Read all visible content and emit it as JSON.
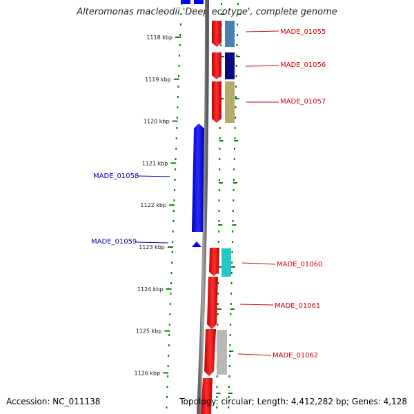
{
  "title": "Alteromonas macleodii 'Deep ecotype', complete genome",
  "footer": {
    "accession": "Accession: NC_011138",
    "summary": "Topology: circular; Length: 4,412,282 bp; Genes: 4,128"
  },
  "ticks": [
    "1118 kbp",
    "1119 kbp",
    "1120 kbp",
    "1121 kbp",
    "1122 kbp",
    "1123 kbp",
    "1124 kbp",
    "1125 kbp",
    "1126 kbp"
  ],
  "genes": [
    {
      "id": "MADE_01055",
      "strand": "forward",
      "color": "#ff0000",
      "cog_color": "#4a7fb5"
    },
    {
      "id": "MADE_01056",
      "strand": "forward",
      "color": "#ff0000",
      "cog_color": "#0a0a80"
    },
    {
      "id": "MADE_01057",
      "strand": "forward",
      "color": "#ff0000",
      "cog_color": "#b5aa6a"
    },
    {
      "id": "MADE_01058",
      "strand": "reverse",
      "color": "#0000ff"
    },
    {
      "id": "MADE_01059",
      "strand": "reverse",
      "color": "#0000ff"
    },
    {
      "id": "MADE_01060",
      "strand": "forward",
      "color": "#ff0000",
      "cog_color": "#20c8c8"
    },
    {
      "id": "MADE_01061",
      "strand": "forward",
      "color": "#ff0000"
    },
    {
      "id": "MADE_01062",
      "strand": "forward",
      "color": "#ff0000",
      "cog_color": "#b8b8b8"
    }
  ],
  "colors": {
    "forward_gene": "#ff0000",
    "reverse_gene": "#0000ff",
    "forward_label": "#cc0000",
    "reverse_label": "#0000aa",
    "backbone": "#808080",
    "tick_dots": "#008000"
  }
}
